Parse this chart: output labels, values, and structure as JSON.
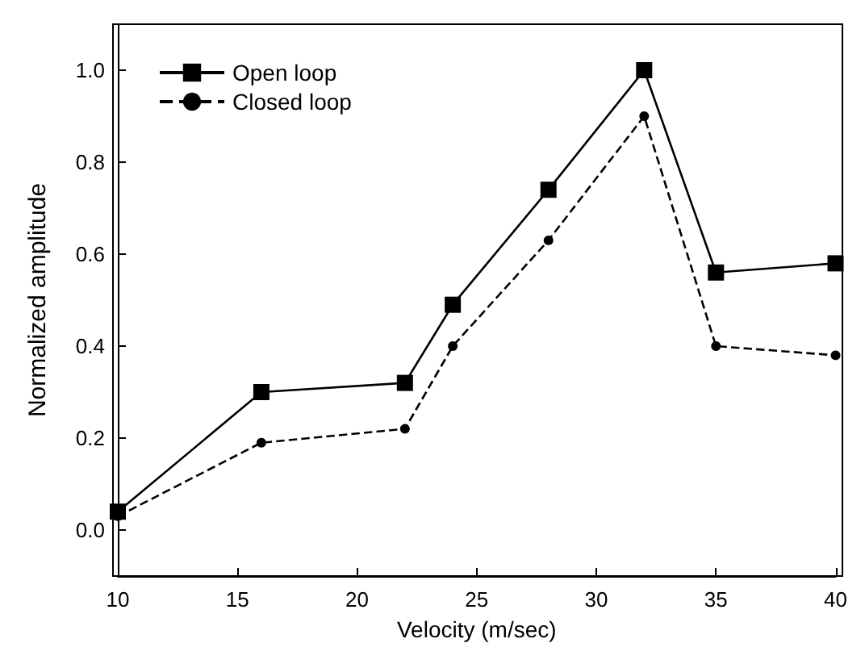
{
  "chart_data": {
    "type": "line",
    "xlabel": "Velocity (m/sec)",
    "ylabel": "Normalized amplitude",
    "x": [
      10,
      16,
      22,
      24,
      28,
      32,
      35,
      40
    ],
    "series": [
      {
        "name": "Open loop",
        "color": "#000000",
        "marker": "square",
        "line_style": "solid",
        "values": [
          0.04,
          0.3,
          0.32,
          0.49,
          0.74,
          1.0,
          0.56,
          0.58
        ]
      },
      {
        "name": "Closed loop",
        "color": "#000000",
        "marker": "circle",
        "line_style": "dashed",
        "values": [
          0.03,
          0.19,
          0.22,
          0.4,
          0.63,
          0.9,
          0.4,
          0.38
        ]
      }
    ],
    "xlim": [
      10,
      40
    ],
    "xticks": [
      10,
      15,
      20,
      25,
      30,
      35,
      40
    ],
    "ylim": [
      -0.1,
      1.1
    ],
    "yticks": [
      {
        "value": 0,
        "label": "0.0"
      },
      0.2,
      0.4,
      0.6,
      0.8,
      {
        "value": 1,
        "label": "1.0"
      }
    ],
    "grid": false,
    "legend": "top left"
  }
}
